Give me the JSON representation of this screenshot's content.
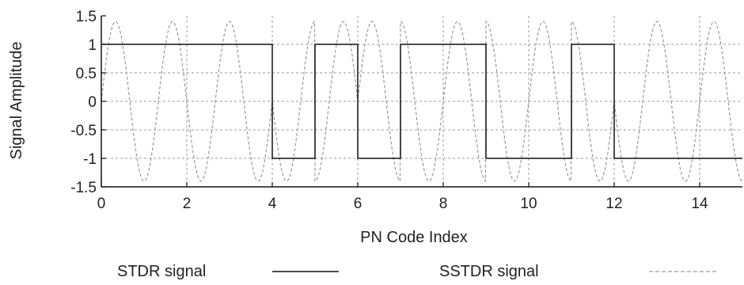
{
  "chart_data": {
    "type": "line",
    "xlabel": "PN Code Index",
    "ylabel": "Signal Amplitude",
    "xlim": [
      0,
      15
    ],
    "ylim": [
      -1.5,
      1.5
    ],
    "xticks": [
      0,
      2,
      4,
      6,
      8,
      10,
      12,
      14
    ],
    "yticks": [
      1.5,
      1,
      0.5,
      0,
      -0.5,
      -1,
      -1.5
    ],
    "ytick_labels": [
      "1.5",
      "1",
      "0.5",
      "0",
      "-0.5",
      "-1",
      "-1.5"
    ],
    "grid": true,
    "legend_position": "bottom",
    "series": [
      {
        "name": "STDR signal",
        "style": "solid",
        "color": "#111111",
        "kind": "step",
        "x_edges": [
          0,
          1,
          2,
          3,
          4,
          5,
          6,
          7,
          8,
          9,
          10,
          11,
          12,
          13,
          14,
          15
        ],
        "values": [
          1,
          1,
          1,
          1,
          -1,
          1,
          -1,
          1,
          1,
          -1,
          -1,
          1,
          -1,
          -1,
          -1
        ]
      },
      {
        "name": "SSTDR signal",
        "style": "dashed",
        "color": "#9a9a9a",
        "kind": "modulated-sine",
        "amplitude": 1.4,
        "cycles_per_chip": 0.75,
        "chip_values": [
          1,
          1,
          1,
          1,
          -1,
          1,
          -1,
          1,
          1,
          -1,
          -1,
          1,
          -1,
          -1,
          -1
        ]
      }
    ]
  }
}
